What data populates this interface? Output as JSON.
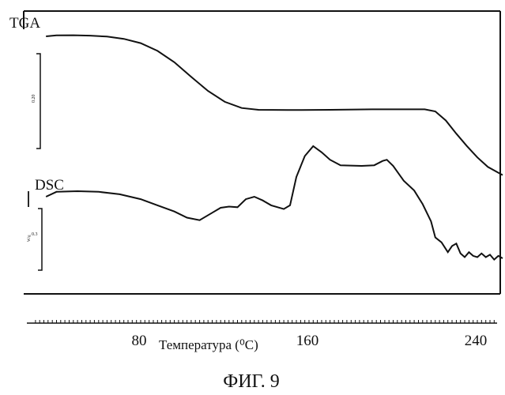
{
  "chart_data": {
    "type": "line",
    "xlabel": "Температура (⁰C)",
    "x_ticks": [
      80,
      160,
      240
    ],
    "xlim": [
      30,
      255
    ],
    "caption": "ФИГ. 9",
    "series": [
      {
        "name": "TGA",
        "scale_label": "0.20",
        "points": [
          [
            35,
            100
          ],
          [
            40,
            100.4
          ],
          [
            48,
            100.5
          ],
          [
            56,
            100.3
          ],
          [
            64,
            99.9
          ],
          [
            72,
            98.9
          ],
          [
            80,
            97.0
          ],
          [
            88,
            93.6
          ],
          [
            96,
            88.6
          ],
          [
            104,
            82.2
          ],
          [
            112,
            76.0
          ],
          [
            120,
            71.2
          ],
          [
            128,
            68.5
          ],
          [
            136,
            67.7
          ],
          [
            150,
            67.6
          ],
          [
            170,
            67.7
          ],
          [
            190,
            67.9
          ],
          [
            215,
            67.9
          ],
          [
            220,
            67.0
          ],
          [
            225,
            63.0
          ],
          [
            230,
            57.2
          ],
          [
            235,
            51.8
          ],
          [
            240,
            46.8
          ],
          [
            245,
            42.6
          ],
          [
            252,
            39.0
          ]
        ]
      },
      {
        "name": "DSC",
        "scale_label": "0.3",
        "scale_unit": "W/g",
        "points": [
          [
            35,
            0
          ],
          [
            40,
            0.4
          ],
          [
            50,
            0.45
          ],
          [
            60,
            0.4
          ],
          [
            70,
            0.2
          ],
          [
            80,
            -0.2
          ],
          [
            88,
            -0.7
          ],
          [
            96,
            -1.2
          ],
          [
            102,
            -1.7
          ],
          [
            108,
            -1.9
          ],
          [
            114,
            -1.3
          ],
          [
            118,
            -0.9
          ],
          [
            122,
            -0.8
          ],
          [
            126,
            -0.85
          ],
          [
            130,
            -0.2
          ],
          [
            134,
            0.0
          ],
          [
            138,
            -0.3
          ],
          [
            142,
            -0.7
          ],
          [
            148,
            -1.0
          ],
          [
            151,
            -0.7
          ],
          [
            154,
            1.6
          ],
          [
            158,
            3.3
          ],
          [
            162,
            4.1
          ],
          [
            166,
            3.6
          ],
          [
            170,
            3.0
          ],
          [
            175,
            2.55
          ],
          [
            185,
            2.5
          ],
          [
            191,
            2.55
          ],
          [
            195,
            2.9
          ],
          [
            197,
            3.0
          ],
          [
            200,
            2.5
          ],
          [
            205,
            1.3
          ],
          [
            210,
            0.5
          ],
          [
            214,
            -0.6
          ],
          [
            218,
            -2.0
          ],
          [
            220,
            -3.3
          ],
          [
            223,
            -3.7
          ],
          [
            226,
            -4.5
          ],
          [
            228,
            -4.0
          ],
          [
            230,
            -3.8
          ],
          [
            232,
            -4.6
          ],
          [
            234,
            -4.9
          ],
          [
            236,
            -4.5
          ],
          [
            238,
            -4.8
          ],
          [
            240,
            -4.9
          ],
          [
            242,
            -4.6
          ],
          [
            244,
            -4.9
          ],
          [
            246,
            -4.7
          ],
          [
            248,
            -5.1
          ],
          [
            250,
            -4.8
          ],
          [
            252,
            -5.0
          ]
        ]
      }
    ]
  }
}
